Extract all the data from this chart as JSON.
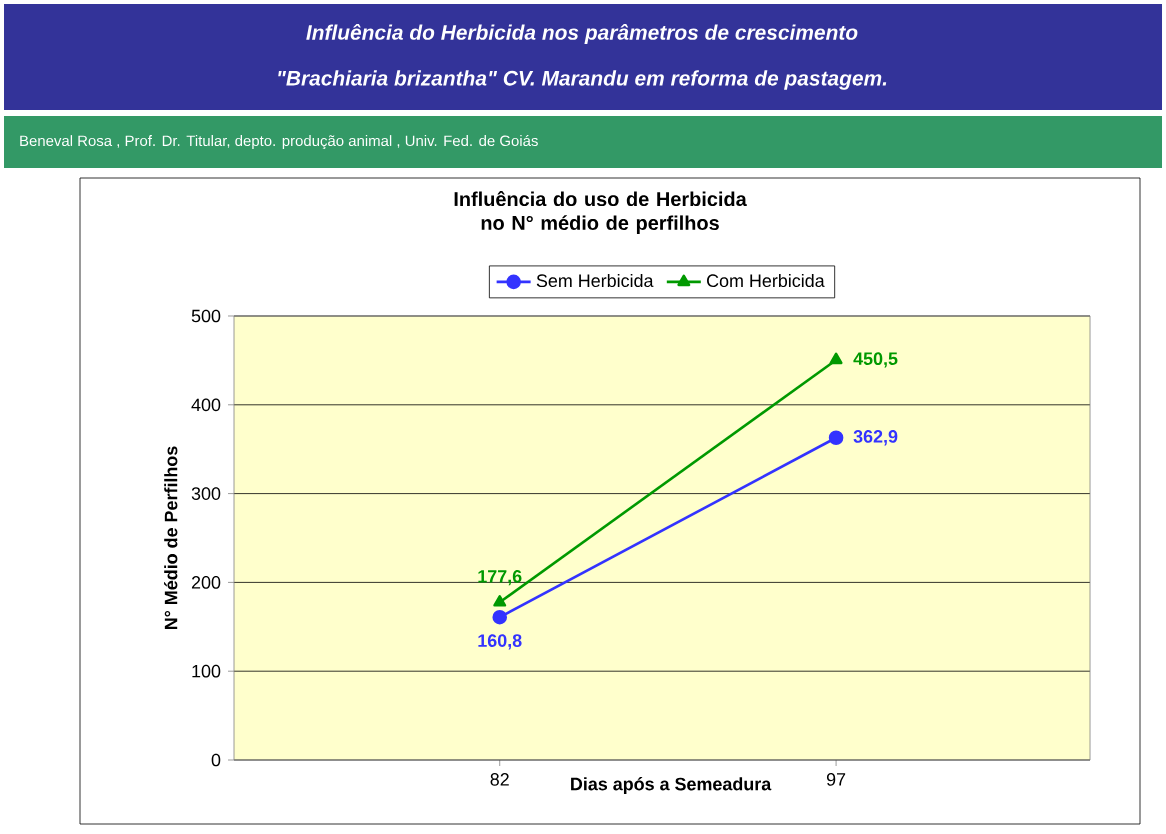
{
  "chart_data": {
    "type": "line",
    "title": "Influência do uso de Herbicida no N° médio de perfilhos",
    "annotations": [
      "Influência do Herbicida  nos parâmetros de crescimento",
      "\"Brachiaria brizantha\" CV. Marandu em reforma de pastagem.",
      "Beneval Rosa , Prof. Dr. Titular, depto. produção animal , Univ. Fed. de Goiás"
    ],
    "categories": [
      "82",
      "97"
    ],
    "xlabel": "Dias após a Semeadura",
    "ylabel": "N° Médio de Perfilhos",
    "series": [
      {
        "name": "Sem Herbicida",
        "color": "#3333ff",
        "marker": "circle",
        "values": [
          160.8,
          362.9
        ],
        "value_labels": [
          "160,8",
          "362,9"
        ]
      },
      {
        "name": "Com Herbicida",
        "color": "#009900",
        "marker": "triangle",
        "values": [
          177.6,
          450.5
        ],
        "value_labels": [
          "177,6",
          "450,5"
        ]
      }
    ],
    "ylim": [
      0,
      500
    ],
    "yticks": [
      0,
      100,
      200,
      300,
      400,
      500
    ],
    "grid": "y",
    "legend": "top"
  }
}
